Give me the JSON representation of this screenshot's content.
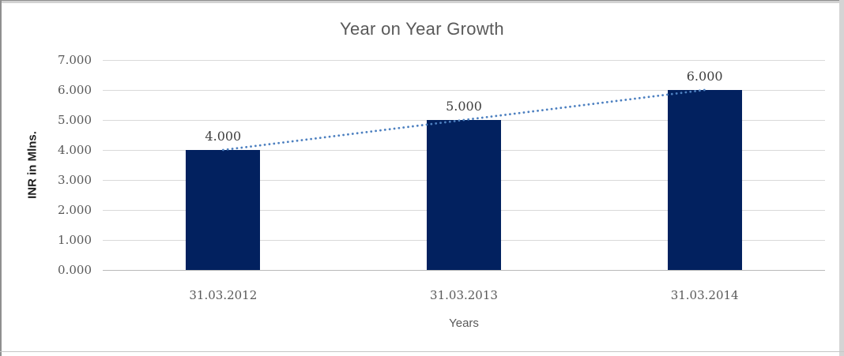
{
  "chart_data": {
    "type": "bar",
    "title": "Year on Year Growth",
    "xlabel": "Years",
    "ylabel": "INR in Mlns.",
    "categories": [
      "31.03.2012",
      "31.03.2013",
      "31.03.2014"
    ],
    "values": [
      4,
      5,
      6
    ],
    "data_labels": [
      "4.000",
      "5.000",
      "6.000"
    ],
    "ylim": [
      0,
      7
    ],
    "ytick_step": 1,
    "ytick_labels": [
      "0.000",
      "1.000",
      "2.000",
      "3.000",
      "4.000",
      "5.000",
      "6.000",
      "7.000"
    ],
    "grid": true,
    "legend": false,
    "bar_color": "#02215F",
    "grid_color": "#D9D9D9",
    "title_color": "#595959",
    "label_color": "#595959",
    "trendline": {
      "type": "linear",
      "style": "dotted",
      "color": "#4D80C0"
    }
  }
}
